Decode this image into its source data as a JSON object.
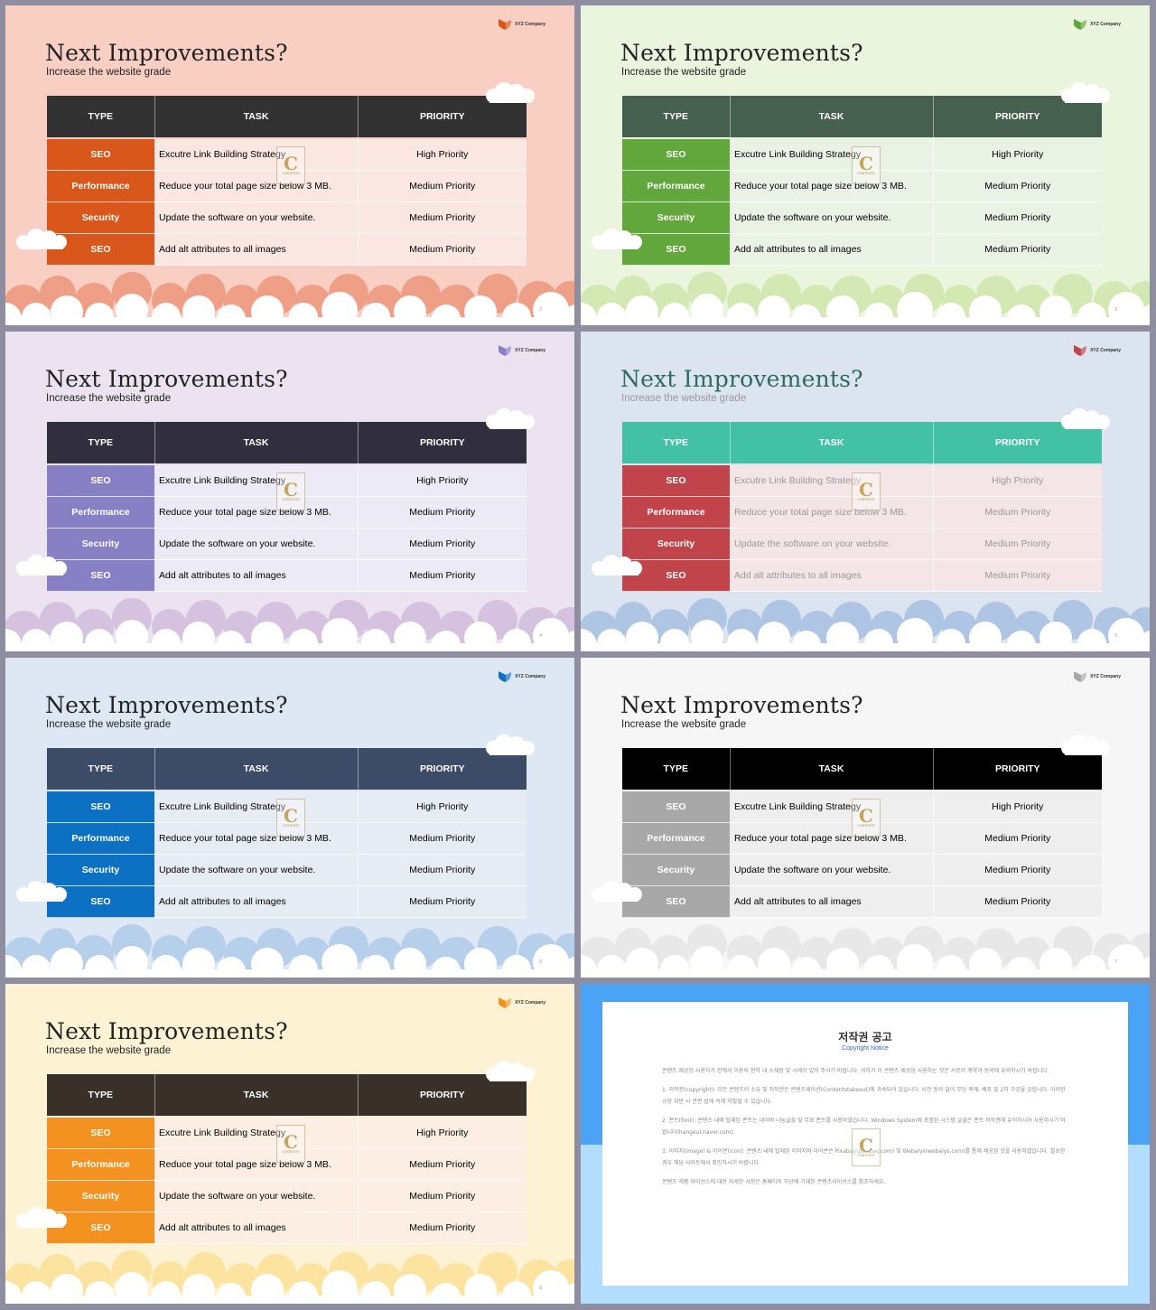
{
  "slides": [
    {
      "num": "2",
      "header_bg": "#323232",
      "type_bg": "#d9571a",
      "row_bg": "#fbe7e1",
      "bg": "#f9cfc4",
      "cloud": "#ee9f85",
      "logo": "#d9571a"
    },
    {
      "num": "3",
      "header_bg": "#45604f",
      "type_bg": "#62a73b",
      "row_bg": "#eaf2e5",
      "bg": "#ebf5dd",
      "cloud": "#d3e8b3",
      "logo": "#62a73b"
    },
    {
      "num": "4",
      "header_bg": "#312f3e",
      "type_bg": "#8880c4",
      "row_bg": "#eceaf4",
      "bg": "#ebe4f0",
      "cloud": "#d4c2df",
      "logo": "#8880c4"
    },
    {
      "num": "5",
      "header_bg": "#43c1a4",
      "type_bg": "#c1444a",
      "row_bg": "#f4e6e6",
      "bg": "#dce4f0",
      "cloud": "#aec6e4",
      "logo": "#c1444a"
    },
    {
      "num": "6",
      "header_bg": "#3c4b66",
      "type_bg": "#0c71c3",
      "row_bg": "#e6ecf4",
      "bg": "#dde8f4",
      "cloud": "#b6d0ec",
      "logo": "#0c71c3"
    },
    {
      "num": "7",
      "header_bg": "#000000",
      "type_bg": "#a8a8a8",
      "row_bg": "#eeeeee",
      "bg": "#f6f6f6",
      "cloud": "#e8e8e8",
      "logo": "#a8a8a8"
    },
    {
      "num": "8",
      "header_bg": "#3a302a",
      "type_bg": "#f39220",
      "row_bg": "#fdeee3",
      "bg": "#fdf2d4",
      "cloud": "#fde3a0",
      "logo": "#f39220"
    }
  ],
  "common": {
    "logo_text": "XYZ Company",
    "title": "Next Improvements?",
    "subtitle": "Increase the website grade",
    "headers": {
      "type": "TYPE",
      "task": "TASK",
      "priority": "PRIORITY"
    },
    "rows": [
      {
        "type": "SEO",
        "task": "Excutre Link Building Strategy",
        "priority": "High Priority"
      },
      {
        "type": "Performance",
        "task": "Reduce your total page size  below 3 MB.",
        "priority": "Medium Priority"
      },
      {
        "type": "Security",
        "task": "Update the software on your website.",
        "priority": "Medium Priority"
      },
      {
        "type": "SEO",
        "task": "Add alt attributes to all images",
        "priority": "Medium Priority"
      }
    ]
  },
  "watermark": {
    "letter": "C",
    "text": "CONTENTS"
  },
  "copyright": {
    "title": "저작권 공고",
    "subtitle": "Copyright Notice",
    "paragraphs": [
      "콘텐츠 제공업 사용자가 한에서 이용의 현약 내 소재범 및 시세이 있어 주시기 바랍니다. 귀하가 이 콘텐츠 제공업 사용하는 것은 서로의 계약과 동의에 유의하시기 바랍니다.",
      "1. 저작권(copyright): 모든 콘텐츠의 소유 및 저작권은 콘텐츠제이션(Contentstakeout)에 귀속되어 있습니다. 사전 동의 없이 무단 복제, 배포 및 2차 가공을 금합니다. 이러한 규정 위반 시 관련 법에 의해 처벌될 수 있습니다.",
      "2. 폰트(font): 콘텐츠 내에 탑재된 폰트는 네이버 나눔글꼴 및 무료 폰트를 사용하였습니다. Windows System에 포함된 시스템 글꼴은 폰트 저작권에 유의하시어 사용하시기 바랍니다(hangeul.naver.com).",
      "3. 이미지(image) & 아이콘(icon): 콘텐츠 내에 탑재된 이미지와 아이콘은 Pixabay(pixabay.com) 및 Webalys(webalys.com)를 통해 제공된 것을 사용하였습니다. 필요한 경우 해당 사이트에서 확인하시기 바랍니다.",
      "콘텐츠 제품 라이선스에 대한 자세한 사항은 홈페이지 하단에 기재된 콘텐츠라이선스를 참조하세요."
    ]
  }
}
